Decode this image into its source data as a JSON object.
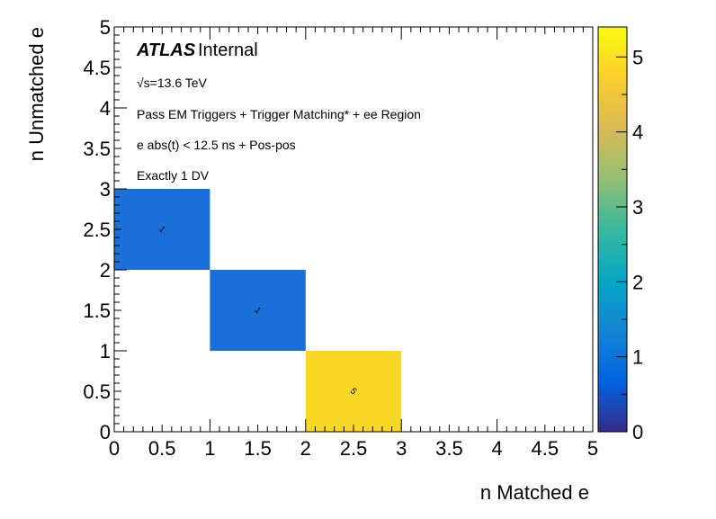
{
  "chart_data": {
    "type": "heatmap",
    "xlabel": "n Matched e",
    "ylabel": "n Unmatched e",
    "xlim": [
      0,
      5
    ],
    "ylim": [
      0,
      5
    ],
    "zlim": [
      0,
      5.4
    ],
    "x_ticks": [
      "0",
      "0.5",
      "1",
      "1.5",
      "2",
      "2.5",
      "3",
      "3.5",
      "4",
      "4.5",
      "5"
    ],
    "y_ticks": [
      "0",
      "0.5",
      "1",
      "1.5",
      "2",
      "2.5",
      "3",
      "3.5",
      "4",
      "4.5",
      "5"
    ],
    "z_ticks": [
      "0",
      "1",
      "2",
      "3",
      "4",
      "5"
    ],
    "cells": [
      {
        "x": [
          0,
          1
        ],
        "y": [
          2,
          3
        ],
        "value": 1,
        "label": "1",
        "color": "#1a6fd8"
      },
      {
        "x": [
          1,
          2
        ],
        "y": [
          1,
          2
        ],
        "value": 1,
        "label": "1",
        "color": "#1a6fd8"
      },
      {
        "x": [
          2,
          3
        ],
        "y": [
          0,
          1
        ],
        "value": 5,
        "label": "5",
        "color": "#f8d824"
      }
    ],
    "colormap": [
      "#352a87",
      "#0363e1",
      "#1485d4",
      "#06a7c6",
      "#38b99e",
      "#92bf73",
      "#d9ba56",
      "#fcce2e",
      "#f9fb0e"
    ],
    "annotations": {
      "atlas_bold": "ATLAS",
      "atlas_label": "Internal",
      "energy": "√s=13.6 TeV",
      "line1": "Pass EM Triggers + Trigger Matching* + ee Region",
      "line2": "e abs(t) < 12.5 ns + Pos-pos",
      "line3": "Exactly 1 DV"
    }
  }
}
